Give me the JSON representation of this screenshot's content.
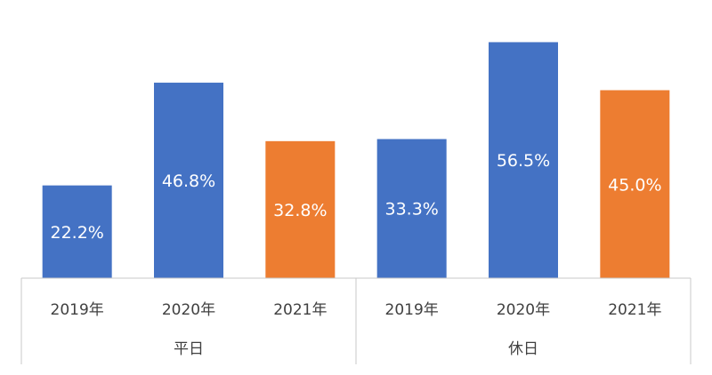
{
  "chart_data": {
    "type": "bar",
    "groups": [
      {
        "label": "平日",
        "bars": [
          {
            "category": "2019年",
            "value": 22.2,
            "value_label": "22.2%",
            "color": "#4472C4"
          },
          {
            "category": "2020年",
            "value": 46.8,
            "value_label": "46.8%",
            "color": "#4472C4"
          },
          {
            "category": "2021年",
            "value": 32.8,
            "value_label": "32.8%",
            "color": "#ED7D31"
          }
        ]
      },
      {
        "label": "休日",
        "bars": [
          {
            "category": "2019年",
            "value": 33.3,
            "value_label": "33.3%",
            "color": "#4472C4"
          },
          {
            "category": "2020年",
            "value": 56.5,
            "value_label": "56.5%",
            "color": "#4472C4"
          },
          {
            "category": "2021年",
            "value": 45.0,
            "value_label": "45.0%",
            "color": "#ED7D31"
          }
        ]
      }
    ],
    "ylim": [
      0,
      60
    ],
    "grid": false,
    "legend": "none"
  }
}
